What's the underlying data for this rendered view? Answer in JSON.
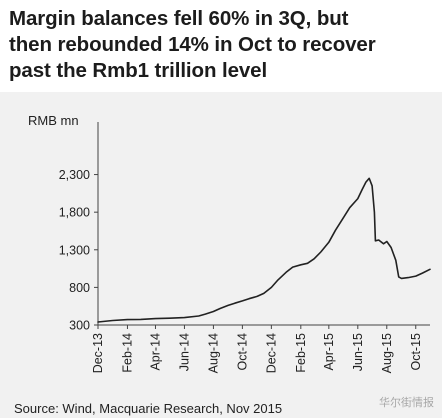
{
  "title_lines": [
    "Margin balances fell 60% in 3Q, but",
    "then rebounded 14% in Oct to recover",
    "past the Rmb1 trillion level"
  ],
  "source": "Source: Wind, Macquarie Research, Nov 2015",
  "watermark": "华尔街情报",
  "chart_data": {
    "type": "line",
    "ylabel": "RMB mn",
    "ylim": [
      300,
      2600
    ],
    "yticks": [
      300,
      800,
      1300,
      1800,
      2300
    ],
    "ytick_labels": [
      "300",
      "800",
      "1,300",
      "1,800",
      "2,300"
    ],
    "xlim": [
      "2013-12",
      "2015-10"
    ],
    "xtick_labels": [
      "Dec-13",
      "Feb-14",
      "Apr-14",
      "Jun-14",
      "Aug-14",
      "Oct-14",
      "Dec-14",
      "Feb-15",
      "Apr-15",
      "Jun-15",
      "Aug-15",
      "Oct-15"
    ],
    "grid": false,
    "series": [
      {
        "color": "#222222",
        "x": [
          "2013-12-01",
          "2014-01-01",
          "2014-02-01",
          "2014-03-01",
          "2014-04-01",
          "2014-05-01",
          "2014-06-01",
          "2014-07-01",
          "2014-07-15",
          "2014-08-01",
          "2014-08-15",
          "2014-09-01",
          "2014-09-15",
          "2014-10-01",
          "2014-10-15",
          "2014-11-01",
          "2014-11-15",
          "2014-12-01",
          "2014-12-15",
          "2015-01-01",
          "2015-01-15",
          "2015-02-01",
          "2015-02-15",
          "2015-03-01",
          "2015-03-15",
          "2015-04-01",
          "2015-04-15",
          "2015-05-01",
          "2015-05-15",
          "2015-06-01",
          "2015-06-10",
          "2015-06-18",
          "2015-06-25",
          "2015-07-01",
          "2015-07-06",
          "2015-07-08",
          "2015-07-15",
          "2015-07-25",
          "2015-08-01",
          "2015-08-10",
          "2015-08-20",
          "2015-08-26",
          "2015-09-01",
          "2015-09-15",
          "2015-10-01",
          "2015-10-15",
          "2015-10-31"
        ],
        "y": [
          340,
          360,
          372,
          375,
          385,
          390,
          398,
          420,
          445,
          480,
          520,
          560,
          590,
          620,
          650,
          680,
          720,
          800,
          900,
          1000,
          1070,
          1100,
          1120,
          1180,
          1270,
          1400,
          1560,
          1720,
          1860,
          1980,
          2100,
          2200,
          2250,
          2150,
          1800,
          1420,
          1430,
          1380,
          1410,
          1330,
          1160,
          940,
          920,
          930,
          950,
          990,
          1040
        ]
      }
    ]
  }
}
